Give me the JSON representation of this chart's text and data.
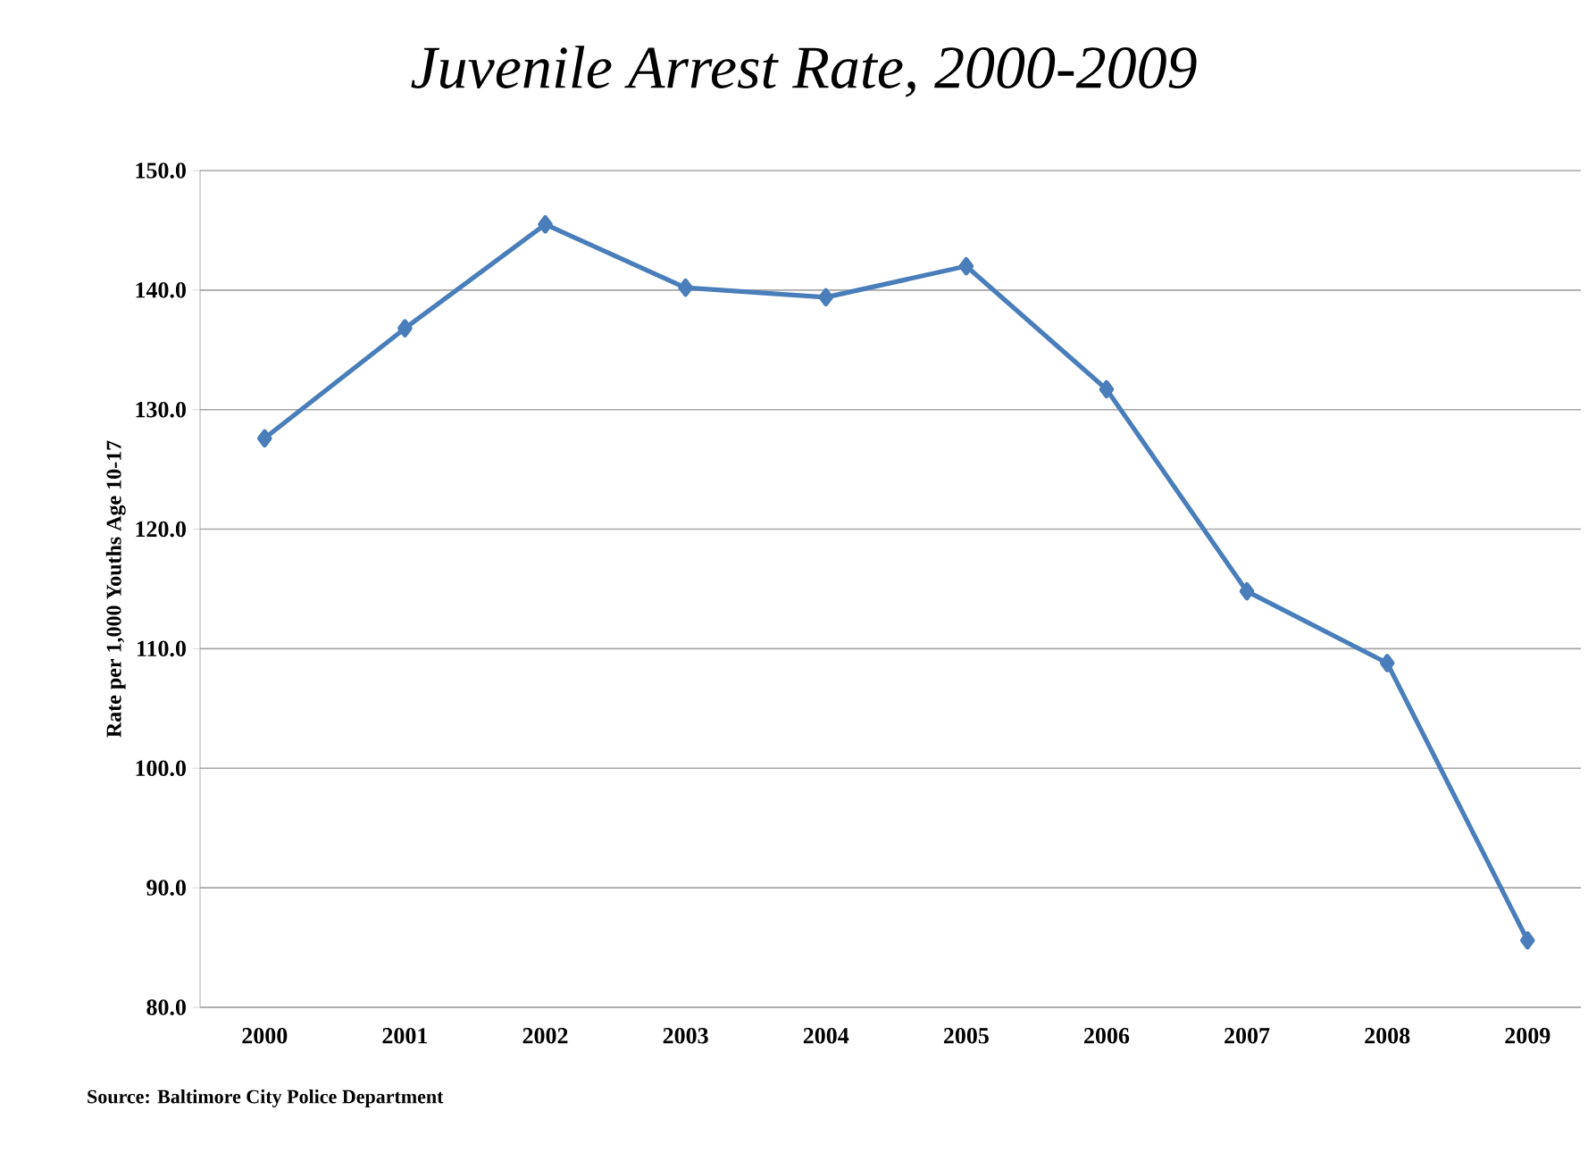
{
  "chart_data": {
    "type": "line",
    "title": "Juvenile Arrest Rate, 2000-2009",
    "ylabel": "Rate per 1,000 Youths  Age 10-17",
    "categories": [
      "2000",
      "2001",
      "2002",
      "2003",
      "2004",
      "2005",
      "2006",
      "2007",
      "2008",
      "2009"
    ],
    "series": [
      {
        "color": "#4a7ebb",
        "values": [
          127.6,
          136.8,
          145.5,
          140.2,
          139.4,
          142.0,
          131.7,
          114.8,
          108.8,
          85.6
        ]
      }
    ],
    "ylim": [
      80,
      150
    ],
    "yticks": [
      {
        "value": 80,
        "label": "80.0"
      },
      {
        "value": 90,
        "label": "90.0"
      },
      {
        "value": 100,
        "label": "100.0"
      },
      {
        "value": 110,
        "label": "110.0"
      },
      {
        "value": 120,
        "label": "120.0"
      },
      {
        "value": 130,
        "label": "130.0"
      },
      {
        "value": 140,
        "label": "140.0"
      },
      {
        "value": 150,
        "label": "150.0"
      }
    ],
    "grid": "y",
    "marker": "diamond",
    "line_style": "solid",
    "annotations": [
      "Source: Baltimore City Police Department"
    ]
  }
}
